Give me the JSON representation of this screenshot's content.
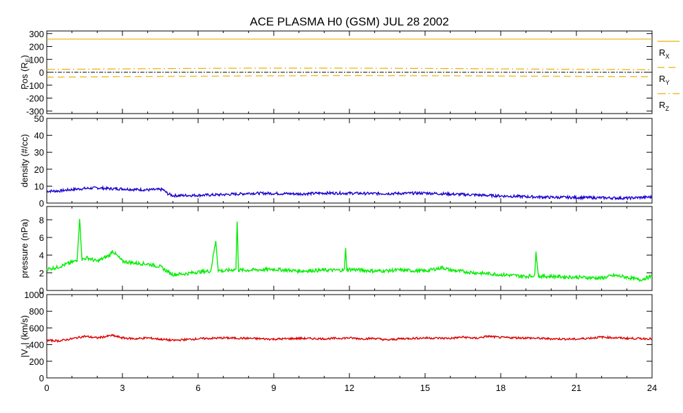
{
  "title": "ACE PLASMA H0 (GSM)   JUL 28 2002",
  "colors": {
    "position": "#e8b000",
    "density": "#1a00d0",
    "pressure": "#00ee00",
    "velocity": "#dd0000",
    "axis": "#000000"
  },
  "x_axis": {
    "range": [
      0,
      24
    ],
    "ticks": [
      "0",
      "3",
      "6",
      "9",
      "12",
      "15",
      "18",
      "21",
      "24"
    ]
  },
  "legend": {
    "items": [
      {
        "name": "R",
        "sub": "X",
        "style": "solid"
      },
      {
        "name": "R",
        "sub": "Y",
        "style": "dashed"
      },
      {
        "name": "R",
        "sub": "Z",
        "style": "dash-dot"
      }
    ]
  },
  "chart_data": [
    {
      "type": "line",
      "ylabel_main": "Pos (R",
      "ylabel_sub": "E",
      "ylabel_end": ")",
      "ylim": [
        -320,
        320
      ],
      "yticks": [
        "300",
        "200",
        "100",
        "0",
        "-100",
        "-200",
        "-300"
      ],
      "zero_line": true,
      "series": [
        {
          "name": "RX",
          "x": [
            0,
            24
          ],
          "y": [
            257,
            257
          ]
        },
        {
          "name": "RY",
          "x": [
            0,
            4,
            8,
            12,
            16,
            20,
            24
          ],
          "y": [
            -38,
            -33,
            -28,
            -25,
            -27,
            -31,
            -35
          ]
        },
        {
          "name": "RZ",
          "x": [
            0,
            4,
            8,
            12,
            16,
            20,
            24
          ],
          "y": [
            22,
            28,
            32,
            32,
            29,
            24,
            20
          ]
        }
      ]
    },
    {
      "type": "line",
      "ylabel": "density (#/cc)",
      "ylim": [
        0,
        50
      ],
      "yticks": [
        "50",
        "40",
        "30",
        "20",
        "10",
        "0"
      ],
      "series": [
        {
          "name": "density",
          "x": [
            0,
            0.5,
            1,
            1.5,
            2,
            2.5,
            3,
            3.5,
            4,
            4.6,
            4.8,
            5,
            6,
            7,
            7.8,
            8,
            9,
            10,
            11,
            12,
            13,
            14,
            15,
            16,
            17,
            18,
            19,
            20,
            21,
            22,
            23,
            24
          ],
          "y": [
            7,
            7.2,
            8,
            8.6,
            9,
            8.5,
            8.4,
            8,
            7.8,
            8,
            5.5,
            4.4,
            4.6,
            5,
            5.5,
            5.8,
            5.7,
            5.4,
            5.9,
            5.8,
            5.6,
            5.7,
            5.9,
            5.3,
            4.8,
            4.2,
            3.8,
            3.4,
            3.3,
            3.1,
            2.9,
            3.6
          ]
        }
      ]
    },
    {
      "type": "line",
      "ylabel": "pressure (nPa)",
      "ylim": [
        0,
        9.5
      ],
      "yticks": [
        "8",
        "6",
        "4",
        "2",
        "0"
      ],
      "series": [
        {
          "name": "pressure",
          "x": [
            0,
            0.4,
            0.8,
            1.2,
            1.3,
            1.4,
            1.6,
            2,
            2.5,
            2.6,
            3,
            3.5,
            4,
            4.5,
            4.7,
            5,
            5.5,
            6,
            6.5,
            6.7,
            6.8,
            7,
            7.5,
            7.55,
            7.6,
            8,
            9,
            10,
            11,
            11.8,
            11.85,
            11.9,
            12,
            13,
            14,
            15,
            15.7,
            16,
            17,
            18,
            19,
            19.35,
            19.4,
            19.5,
            20,
            21,
            22,
            22.5,
            23,
            23.5,
            24
          ],
          "y": [
            2.4,
            2.6,
            3,
            3.4,
            8.1,
            3.5,
            3.7,
            3.3,
            4,
            4.5,
            3.3,
            3.1,
            3,
            2.7,
            2.3,
            1.8,
            1.9,
            2.1,
            2.2,
            5.6,
            2.3,
            2.2,
            2.4,
            7.8,
            2.3,
            2.3,
            2.4,
            2.2,
            2.3,
            2.3,
            4.8,
            2.3,
            2.4,
            2.2,
            2.3,
            2.2,
            2.6,
            2.3,
            2,
            1.8,
            1.6,
            1.7,
            4.4,
            1.6,
            1.6,
            1.5,
            1.4,
            1.7,
            1.5,
            1.2,
            1.6
          ]
        }
      ]
    },
    {
      "type": "line",
      "ylabel_pre": "|V",
      "ylabel_sub": "X",
      "ylabel_end": "| (km/s)",
      "ylim": [
        0,
        1000
      ],
      "yticks": [
        "1000",
        "800",
        "600",
        "400",
        "200",
        "0"
      ],
      "series": [
        {
          "name": "Vx",
          "x": [
            0,
            0.5,
            1,
            1.5,
            2,
            2.6,
            3,
            3.5,
            4,
            4.5,
            5,
            6,
            7,
            8,
            9,
            10,
            11,
            12,
            12.5,
            13,
            13.5,
            14,
            15,
            16,
            16.5,
            17,
            17.5,
            18,
            19,
            20,
            21,
            22,
            23,
            24
          ],
          "y": [
            450,
            445,
            470,
            500,
            480,
            510,
            480,
            470,
            480,
            465,
            450,
            470,
            480,
            475,
            465,
            475,
            470,
            480,
            470,
            475,
            455,
            470,
            480,
            475,
            490,
            475,
            500,
            485,
            480,
            470,
            465,
            490,
            475,
            470
          ]
        }
      ]
    }
  ]
}
